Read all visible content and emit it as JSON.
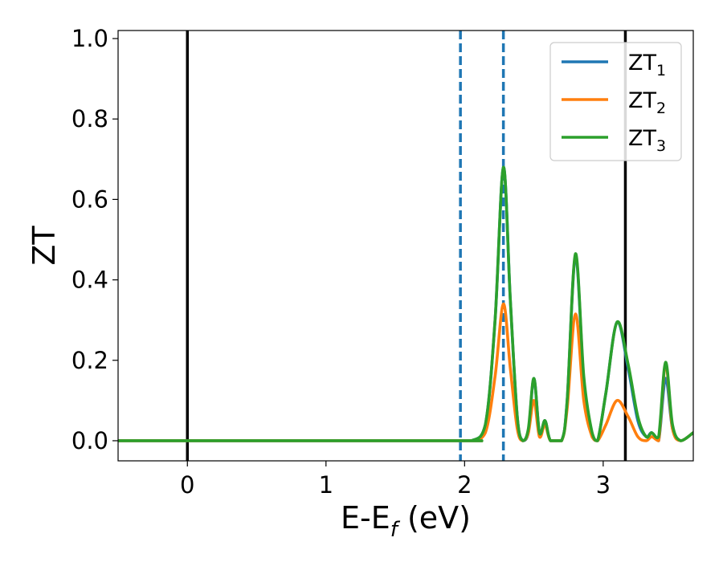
{
  "chart_data": {
    "type": "line",
    "xlabel_main": "E-E",
    "xlabel_sub": "f",
    "xlabel_unit": " (eV)",
    "ylabel": "ZT",
    "xlim": [
      -0.5,
      3.65
    ],
    "ylim": [
      -0.05,
      1.02
    ],
    "xticks": [
      0,
      1,
      2,
      3
    ],
    "xtick_labels": [
      "0",
      "1",
      "2",
      "3"
    ],
    "yticks": [
      0.0,
      0.2,
      0.4,
      0.6,
      0.8,
      1.0
    ],
    "ytick_labels": [
      "0.0",
      "0.2",
      "0.4",
      "0.6",
      "0.8",
      "1.0"
    ],
    "grid": false,
    "legend_position": "top-right",
    "vlines": [
      {
        "x": 0.0,
        "style": "solid",
        "color": "#000000"
      },
      {
        "x": 3.16,
        "style": "solid",
        "color": "#000000"
      },
      {
        "x": 1.97,
        "style": "dashed",
        "color": "#1f77b4"
      },
      {
        "x": 2.28,
        "style": "dashed",
        "color": "#1f77b4"
      }
    ],
    "series": [
      {
        "name": "ZT",
        "sub": "1",
        "color": "#1f77b4",
        "points": [
          [
            -0.5,
            0
          ],
          [
            1.9,
            0
          ],
          [
            2.05,
            0
          ],
          [
            2.15,
            0.04
          ],
          [
            2.22,
            0.3
          ],
          [
            2.28,
            0.68
          ],
          [
            2.33,
            0.35
          ],
          [
            2.38,
            0.06
          ],
          [
            2.42,
            0
          ],
          [
            2.46,
            0.02
          ],
          [
            2.5,
            0.155
          ],
          [
            2.54,
            0.02
          ],
          [
            2.58,
            0.05
          ],
          [
            2.62,
            0
          ],
          [
            2.7,
            0
          ],
          [
            2.74,
            0.1
          ],
          [
            2.8,
            0.46
          ],
          [
            2.86,
            0.15
          ],
          [
            2.92,
            0.01
          ],
          [
            2.96,
            0.0
          ],
          [
            3.02,
            0.12
          ],
          [
            3.1,
            0.295
          ],
          [
            3.18,
            0.18
          ],
          [
            3.25,
            0.05
          ],
          [
            3.31,
            0.01
          ],
          [
            3.35,
            0.02
          ],
          [
            3.4,
            0
          ],
          [
            3.45,
            0.155
          ],
          [
            3.5,
            0.03
          ],
          [
            3.56,
            0.0
          ],
          [
            3.65,
            0.02
          ]
        ]
      },
      {
        "name": "ZT",
        "sub": "2",
        "color": "#ff7f0e",
        "points": [
          [
            -0.5,
            0
          ],
          [
            1.9,
            0
          ],
          [
            2.05,
            0
          ],
          [
            2.15,
            0.02
          ],
          [
            2.22,
            0.16
          ],
          [
            2.28,
            0.34
          ],
          [
            2.33,
            0.18
          ],
          [
            2.38,
            0.03
          ],
          [
            2.42,
            0
          ],
          [
            2.46,
            0.02
          ],
          [
            2.5,
            0.1
          ],
          [
            2.54,
            0.01
          ],
          [
            2.58,
            0.04
          ],
          [
            2.62,
            0
          ],
          [
            2.7,
            0
          ],
          [
            2.74,
            0.08
          ],
          [
            2.8,
            0.315
          ],
          [
            2.86,
            0.1
          ],
          [
            2.92,
            0.01
          ],
          [
            2.96,
            0.0
          ],
          [
            3.02,
            0.04
          ],
          [
            3.1,
            0.1
          ],
          [
            3.18,
            0.06
          ],
          [
            3.25,
            0.01
          ],
          [
            3.31,
            0
          ],
          [
            3.35,
            0.01
          ],
          [
            3.4,
            0
          ],
          [
            3.45,
            0.19
          ],
          [
            3.5,
            0.03
          ],
          [
            3.56,
            0.0
          ],
          [
            3.65,
            0.02
          ]
        ]
      },
      {
        "name": "ZT",
        "sub": "3",
        "color": "#2ca02c",
        "points": [
          [
            -0.5,
            0
          ],
          [
            1.9,
            0
          ],
          [
            2.05,
            0
          ],
          [
            2.15,
            0.04
          ],
          [
            2.22,
            0.3
          ],
          [
            2.28,
            0.68
          ],
          [
            2.33,
            0.35
          ],
          [
            2.38,
            0.06
          ],
          [
            2.42,
            0
          ],
          [
            2.46,
            0.03
          ],
          [
            2.5,
            0.155
          ],
          [
            2.54,
            0.02
          ],
          [
            2.58,
            0.05
          ],
          [
            2.62,
            0
          ],
          [
            2.7,
            0
          ],
          [
            2.74,
            0.1
          ],
          [
            2.8,
            0.465
          ],
          [
            2.86,
            0.16
          ],
          [
            2.92,
            0.02
          ],
          [
            2.96,
            0.0
          ],
          [
            3.02,
            0.12
          ],
          [
            3.1,
            0.295
          ],
          [
            3.18,
            0.19
          ],
          [
            3.25,
            0.06
          ],
          [
            3.31,
            0.01
          ],
          [
            3.35,
            0.02
          ],
          [
            3.4,
            0.01
          ],
          [
            3.45,
            0.195
          ],
          [
            3.5,
            0.04
          ],
          [
            3.56,
            0.0
          ],
          [
            3.65,
            0.02
          ]
        ]
      }
    ]
  }
}
